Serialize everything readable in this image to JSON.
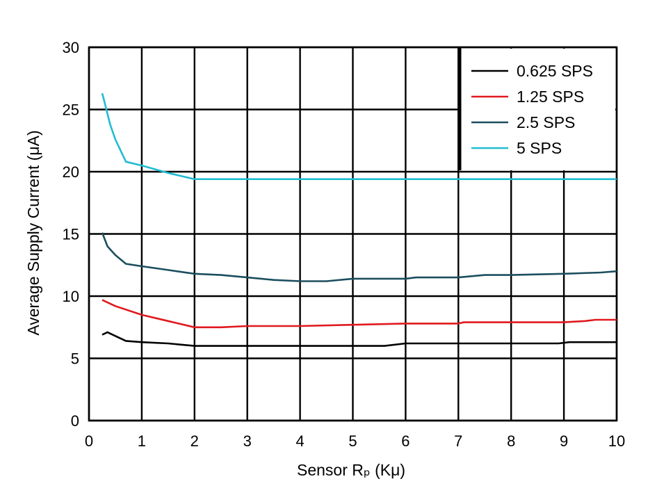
{
  "chart_data": {
    "type": "line",
    "title": "",
    "xlabel": "Sensor Rₚ (Kμ)",
    "ylabel": "Average Supply Current (μA)",
    "xlim": [
      0,
      10
    ],
    "ylim": [
      0,
      30
    ],
    "x_ticks": [
      "0",
      "1",
      "2",
      "3",
      "4",
      "5",
      "6",
      "7",
      "8",
      "9",
      "10"
    ],
    "y_ticks": [
      "0",
      "5",
      "10",
      "15",
      "20",
      "25",
      "30"
    ],
    "grid": true,
    "legend_position": "top-right",
    "series": [
      {
        "name": "0.625 SPS",
        "color": "#000000",
        "points": [
          [
            0.25,
            6.9
          ],
          [
            0.35,
            7.1
          ],
          [
            0.5,
            6.8
          ],
          [
            0.7,
            6.4
          ],
          [
            1.0,
            6.3
          ],
          [
            1.5,
            6.2
          ],
          [
            2.0,
            6.0
          ],
          [
            3.0,
            6.0
          ],
          [
            4.0,
            6.0
          ],
          [
            5.0,
            6.0
          ],
          [
            5.6,
            6.0
          ],
          [
            6.0,
            6.2
          ],
          [
            7.0,
            6.2
          ],
          [
            8.0,
            6.2
          ],
          [
            8.9,
            6.2
          ],
          [
            9.1,
            6.3
          ],
          [
            10.0,
            6.3
          ]
        ]
      },
      {
        "name": "1.25 SPS",
        "color": "#e0191f",
        "points": [
          [
            0.25,
            9.7
          ],
          [
            0.5,
            9.2
          ],
          [
            1.0,
            8.5
          ],
          [
            1.5,
            8.0
          ],
          [
            2.0,
            7.5
          ],
          [
            2.5,
            7.5
          ],
          [
            3.0,
            7.6
          ],
          [
            4.0,
            7.6
          ],
          [
            5.0,
            7.7
          ],
          [
            6.0,
            7.8
          ],
          [
            7.0,
            7.8
          ],
          [
            7.1,
            7.9
          ],
          [
            8.0,
            7.9
          ],
          [
            9.0,
            7.9
          ],
          [
            9.4,
            8.0
          ],
          [
            9.6,
            8.1
          ],
          [
            10.0,
            8.1
          ]
        ]
      },
      {
        "name": "2.5 SPS",
        "color": "#1b4e5e",
        "points": [
          [
            0.25,
            15.1
          ],
          [
            0.35,
            14.0
          ],
          [
            0.5,
            13.3
          ],
          [
            0.7,
            12.6
          ],
          [
            1.0,
            12.4
          ],
          [
            1.5,
            12.1
          ],
          [
            2.0,
            11.8
          ],
          [
            2.5,
            11.7
          ],
          [
            3.0,
            11.5
          ],
          [
            3.5,
            11.3
          ],
          [
            4.0,
            11.2
          ],
          [
            4.5,
            11.2
          ],
          [
            5.0,
            11.4
          ],
          [
            6.0,
            11.4
          ],
          [
            6.2,
            11.5
          ],
          [
            7.0,
            11.5
          ],
          [
            7.5,
            11.7
          ],
          [
            8.0,
            11.7
          ],
          [
            9.0,
            11.8
          ],
          [
            9.7,
            11.9
          ],
          [
            10.0,
            12.0
          ]
        ]
      },
      {
        "name": "5 SPS",
        "color": "#21bcd0",
        "points": [
          [
            0.25,
            26.3
          ],
          [
            0.3,
            25.5
          ],
          [
            0.4,
            23.8
          ],
          [
            0.5,
            22.6
          ],
          [
            0.7,
            20.8
          ],
          [
            1.0,
            20.5
          ],
          [
            1.5,
            19.9
          ],
          [
            2.0,
            19.4
          ],
          [
            3.0,
            19.4
          ],
          [
            4.0,
            19.4
          ],
          [
            5.0,
            19.4
          ],
          [
            6.0,
            19.4
          ],
          [
            7.0,
            19.4
          ],
          [
            8.0,
            19.4
          ],
          [
            9.0,
            19.4
          ],
          [
            10.0,
            19.4
          ]
        ]
      }
    ]
  }
}
